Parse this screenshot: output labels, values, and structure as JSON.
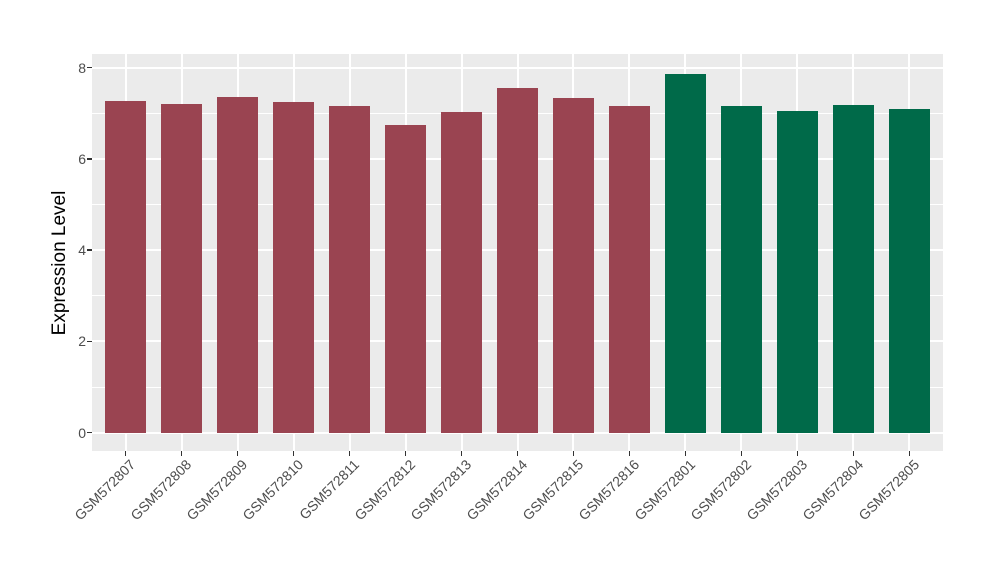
{
  "chart_data": {
    "type": "bar",
    "title": "",
    "xlabel": "",
    "ylabel": "Expression Level",
    "categories": [
      "GSM572807",
      "GSM572808",
      "GSM572809",
      "GSM572810",
      "GSM572811",
      "GSM572812",
      "GSM572813",
      "GSM572814",
      "GSM572815",
      "GSM572816",
      "GSM572801",
      "GSM572802",
      "GSM572803",
      "GSM572804",
      "GSM572805"
    ],
    "values": [
      7.28,
      7.21,
      7.35,
      7.25,
      7.16,
      6.75,
      7.03,
      7.56,
      7.34,
      7.15,
      7.87,
      7.16,
      7.04,
      7.19,
      7.09
    ],
    "colors": [
      "#9A4451",
      "#9A4451",
      "#9A4451",
      "#9A4451",
      "#9A4451",
      "#9A4451",
      "#9A4451",
      "#9A4451",
      "#9A4451",
      "#9A4451",
      "#006A49",
      "#006A49",
      "#006A49",
      "#006A49",
      "#006A49"
    ],
    "group_colors": {
      "red_group": "#9A4451",
      "green_group": "#006A49"
    },
    "yticks": [
      0,
      2,
      4,
      6,
      8
    ],
    "minor_yticks": [
      1,
      3,
      5,
      7
    ],
    "ylim": [
      -0.4,
      8.3
    ],
    "grid": "on",
    "legend": "none",
    "panel_background": "#EBEBEB",
    "grid_color": "#FFFFFF",
    "tick_color": "#333333",
    "axis_text_color": "#4d4d4d"
  }
}
